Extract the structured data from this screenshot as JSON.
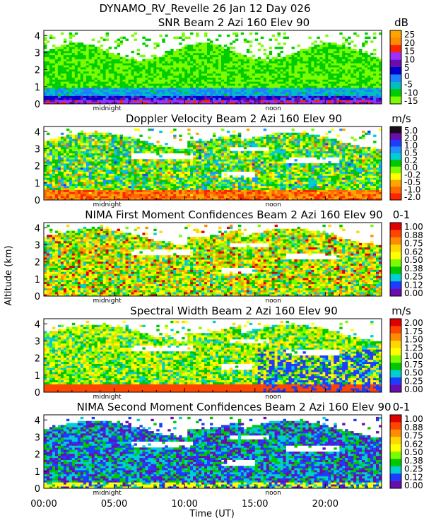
{
  "figure": {
    "title": "DYNAMO_RV_Revelle  26 Jan 12 Day 026",
    "ylabel": "Altitude (km)",
    "xlabel": "Time (UT)",
    "midnight_label": "midnight",
    "noon_label": "noon",
    "midnight_hour": 4.5,
    "noon_hour": 16.3
  },
  "chart_data": [
    {
      "type": "heatmap",
      "title": "SNR Beam 2 Azi 160 Elev 90",
      "unit": "dB",
      "xlim": [
        0,
        24
      ],
      "ylim": [
        0,
        4.3
      ],
      "yticks": [
        "0",
        "1",
        "2",
        "3",
        "4"
      ],
      "colorbar_ticks": [
        "25",
        "20",
        "15",
        "10",
        "5",
        "0",
        "-5",
        "-10",
        "-15"
      ],
      "colorbar_colors": [
        "#ffa500",
        "#ff8c00",
        "#ff2400",
        "#9b30ff",
        "#6a0dad",
        "#0000cd",
        "#1e7fff",
        "#00bfbf",
        "#00cd00",
        "#7cfc00"
      ],
      "pattern": "snr"
    },
    {
      "type": "heatmap",
      "title": "Doppler Velocity Beam 2 Azi 160 Elev 90",
      "unit": "m/s",
      "xlim": [
        0,
        24
      ],
      "ylim": [
        0,
        4.3
      ],
      "yticks": [
        "0",
        "1",
        "2",
        "3",
        "4"
      ],
      "colorbar_ticks": [
        "5.0",
        "2.0",
        "1.0",
        "0.5",
        "0.2",
        "0.0",
        "-0.2",
        "-0.5",
        "-1.0",
        "-2.0"
      ],
      "colorbar_colors": [
        "#1a0a1a",
        "#6a0dad",
        "#1e3cff",
        "#1e90ff",
        "#00ced1",
        "#00c800",
        "#7cfc00",
        "#ffff00",
        "#ffa500",
        "#ff6a00",
        "#ff2400"
      ],
      "pattern": "doppler"
    },
    {
      "type": "heatmap",
      "title": "NIMA First Moment Confidences Beam 2 Azi 160 Elev 90",
      "unit": "0-1",
      "xlim": [
        0,
        24
      ],
      "ylim": [
        0,
        4.3
      ],
      "yticks": [
        "0",
        "1",
        "2",
        "3",
        "4"
      ],
      "colorbar_ticks": [
        "1.00",
        "0.88",
        "0.75",
        "0.62",
        "0.50",
        "0.38",
        "0.25",
        "0.12",
        "0.00"
      ],
      "colorbar_colors": [
        "#e00000",
        "#ff4500",
        "#ff8c00",
        "#ffd700",
        "#ffff00",
        "#7cfc00",
        "#00c800",
        "#00ced1",
        "#1e3cff",
        "#6a0dad"
      ],
      "pattern": "conf1"
    },
    {
      "type": "heatmap",
      "title": "Spectral Width Beam 2 Azi 160 Elev 90",
      "unit": "m/s",
      "xlim": [
        0,
        24
      ],
      "ylim": [
        0,
        4.3
      ],
      "yticks": [
        "0",
        "1",
        "2",
        "3",
        "4"
      ],
      "colorbar_ticks": [
        "2.00",
        "1.75",
        "1.50",
        "1.25",
        "1.00",
        "0.75",
        "0.50",
        "0.25",
        "0.00"
      ],
      "colorbar_colors": [
        "#e00000",
        "#ff4500",
        "#ff8c00",
        "#ffd700",
        "#ffff00",
        "#7cfc00",
        "#00c800",
        "#00ced1",
        "#1e3cff",
        "#6a0dad"
      ],
      "pattern": "width"
    },
    {
      "type": "heatmap",
      "title": "NIMA Second Moment Confidences Beam 2 Azi 160 Elev 90",
      "unit": "0-1",
      "xlim": [
        0,
        24
      ],
      "ylim": [
        0,
        4.3
      ],
      "yticks": [
        "0",
        "1",
        "2",
        "3",
        "4"
      ],
      "xticks": [
        "00:00",
        "05:00",
        "10:00",
        "15:00",
        "20:00"
      ],
      "colorbar_ticks": [
        "1.00",
        "0.88",
        "0.75",
        "0.62",
        "0.50",
        "0.38",
        "0.25",
        "0.12",
        "0.00"
      ],
      "colorbar_colors": [
        "#e00000",
        "#ff4500",
        "#ff8c00",
        "#ffd700",
        "#ffff00",
        "#7cfc00",
        "#00c800",
        "#00ced1",
        "#1e3cff",
        "#6a0dad"
      ],
      "pattern": "conf2"
    }
  ]
}
